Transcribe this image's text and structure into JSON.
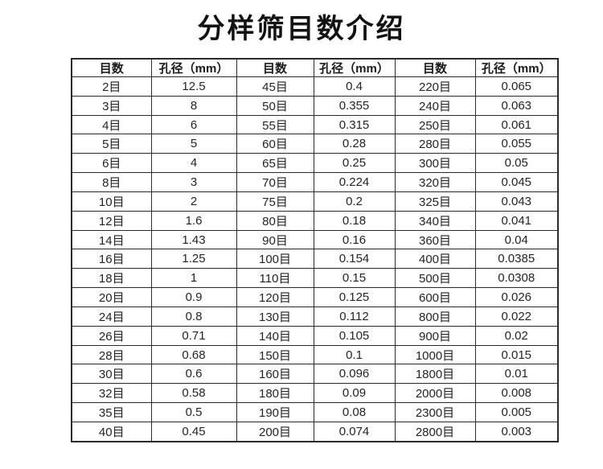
{
  "page": {
    "title": "分样筛目数介绍",
    "background_color": "#ffffff",
    "border_color": "#2b2b2b",
    "text_color": "#242424"
  },
  "table": {
    "headers": [
      "目数",
      "孔径（mm）",
      "目数",
      "孔径（mm）",
      "目数",
      "孔径（mm）"
    ],
    "rows": [
      [
        "2目",
        "12.5",
        "45目",
        "0.4",
        "220目",
        "0.065"
      ],
      [
        "3目",
        "8",
        "50目",
        "0.355",
        "240目",
        "0.063"
      ],
      [
        "4目",
        "6",
        "55目",
        "0.315",
        "250目",
        "0.061"
      ],
      [
        "5目",
        "5",
        "60目",
        "0.28",
        "280目",
        "0.055"
      ],
      [
        "6目",
        "4",
        "65目",
        "0.25",
        "300目",
        "0.05"
      ],
      [
        "8目",
        "3",
        "70目",
        "0.224",
        "320目",
        "0.045"
      ],
      [
        "10目",
        "2",
        "75目",
        "0.2",
        "325目",
        "0.043"
      ],
      [
        "12目",
        "1.6",
        "80目",
        "0.18",
        "340目",
        "0.041"
      ],
      [
        "14目",
        "1.43",
        "90目",
        "0.16",
        "360目",
        "0.04"
      ],
      [
        "16目",
        "1.25",
        "100目",
        "0.154",
        "400目",
        "0.0385"
      ],
      [
        "18目",
        "1",
        "110目",
        "0.15",
        "500目",
        "0.0308"
      ],
      [
        "20目",
        "0.9",
        "120目",
        "0.125",
        "600目",
        "0.026"
      ],
      [
        "24目",
        "0.8",
        "130目",
        "0.112",
        "800目",
        "0.022"
      ],
      [
        "26目",
        "0.71",
        "140目",
        "0.105",
        "900目",
        "0.02"
      ],
      [
        "28目",
        "0.68",
        "150目",
        "0.1",
        "1000目",
        "0.015"
      ],
      [
        "30目",
        "0.6",
        "160目",
        "0.096",
        "1800目",
        "0.01"
      ],
      [
        "32目",
        "0.58",
        "180目",
        "0.09",
        "2000目",
        "0.008"
      ],
      [
        "35目",
        "0.5",
        "190目",
        "0.08",
        "2300目",
        "0.005"
      ],
      [
        "40目",
        "0.45",
        "200目",
        "0.074",
        "2800目",
        "0.003"
      ]
    ]
  }
}
